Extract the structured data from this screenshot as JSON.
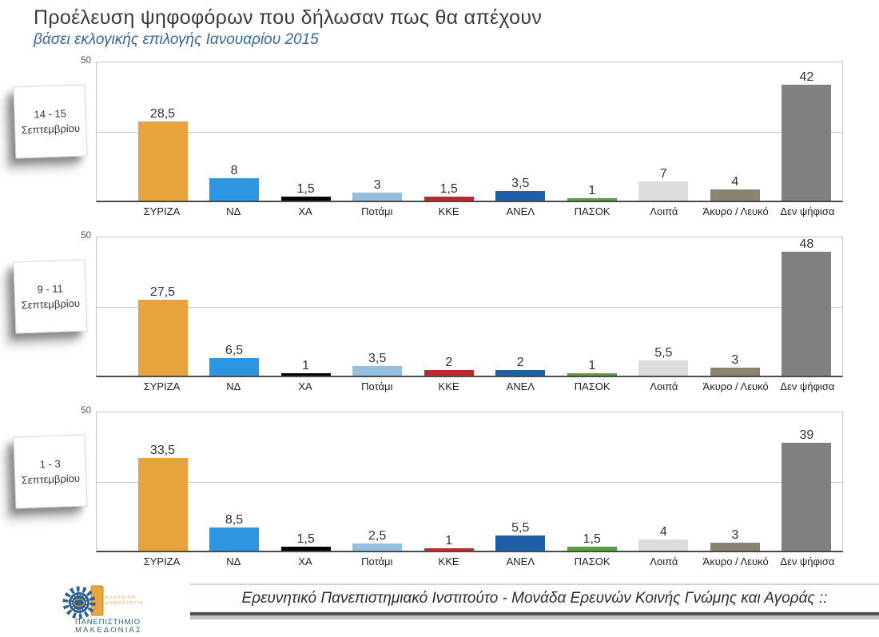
{
  "header": {
    "title": "Προέλευση ψηφοφόρων που δήλωσαν πως θα απέχουν",
    "subtitle": "βάσει εκλογικής επιλογής Ιανουαρίου 2015"
  },
  "chart_data": {
    "type": "bar",
    "title": "Προέλευση ψηφοφόρων που δήλωσαν πως θα απέχουν",
    "subtitle": "βάσει εκλογικής επιλογής Ιανουαρίου 2015",
    "ymax": 50,
    "ytick_label": "50",
    "gridline_value": 25,
    "grid": "single horizontal gridline at 25, plot border light gray, dark bottom axis",
    "legend_position": "none",
    "decimal_separator": ",",
    "categories": [
      "ΣΥΡΙΖΑ",
      "ΝΔ",
      "ΧΑ",
      "Ποτάμι",
      "ΚΚΕ",
      "ΑΝΕΛ",
      "ΠΑΣΟΚ",
      "Λοιπά",
      "Άκυρο / Λευκό",
      "Δεν ψήφισα"
    ],
    "colors": [
      "#E8A33C",
      "#2E96E0",
      "#000000",
      "#94BFE0",
      "#C0282D",
      "#1E5FA9",
      "#5A9E44",
      "#DCDCDC",
      "#8C8272",
      "#808080"
    ],
    "series": [
      {
        "name": "14 - 15 Σεπτεμβρίου",
        "period_line1": "14 - 15",
        "period_line2": "Σεπτεμβρίου",
        "values": [
          28.5,
          8,
          1.5,
          3,
          1.5,
          3.5,
          1,
          7,
          4,
          42
        ]
      },
      {
        "name": "9 - 11 Σεπτεμβρίου",
        "period_line1": "9 - 11",
        "period_line2": "Σεπτεμβρίου",
        "values": [
          27.5,
          6.5,
          1,
          3.5,
          2,
          2,
          1,
          5.5,
          3,
          48
        ]
      },
      {
        "name": "1 - 3 Σεπτεμβρίου",
        "period_line1": "1 - 3",
        "period_line2": "Σεπτεμβρίου",
        "values": [
          33.5,
          8.5,
          1.5,
          2.5,
          1,
          5.5,
          1.5,
          4,
          3,
          39
        ]
      }
    ]
  },
  "footer": {
    "text": "Ερευνητικό Πανεπιστημιακό Ινστιτούτο - Μονάδα Ερευνών Κοινής Γνώμης και Αγοράς ::",
    "logo": {
      "republic_line1": "ΕΛΛΗΝΙΚΗ",
      "republic_line2": "ΔΗΜΟΚΡΑΤΙΑ",
      "university_line1": "ΠΑΝΕΠΙΣΤΗΜΙΟ",
      "university_line2": "ΜΑΚΕΔΟΝΙΑΣ"
    }
  },
  "colors": {
    "title_text": "#3B3B3B",
    "subtitle_text": "#35689B",
    "axis": "#4A4A4A",
    "gridline": "#C8C8C8",
    "plot_border": "#C9C9C9",
    "logo_blue": "#2C6090",
    "logo_orange": "#E9A63D"
  }
}
